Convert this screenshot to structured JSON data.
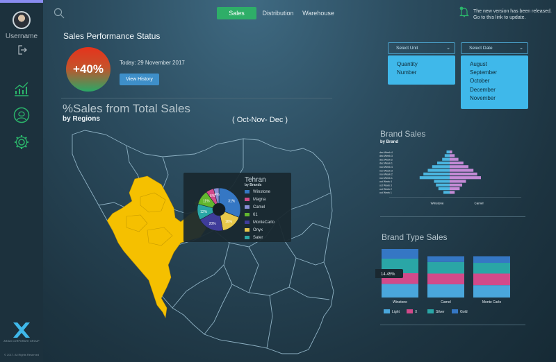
{
  "user": {
    "name": "Username"
  },
  "nav": {
    "tabs": [
      "Sales",
      "Distribution",
      "Warehouse"
    ],
    "active": 0
  },
  "notification": {
    "line1": "The new version has been released.",
    "line2": "Go to this link to update."
  },
  "status": {
    "title": "Sales Performance Status",
    "kpi": "+40%",
    "today": "Today: 29 November 2017",
    "button": "View History"
  },
  "map_section": {
    "title": "%Sales from Total Sales",
    "subtitle": "by Regions",
    "period": "( Oct-Nov- Dec )",
    "tooltip": {
      "title": "Tehran",
      "subtitle": "by Brands",
      "legend": [
        {
          "label": "Winstone",
          "color": "#3577c4"
        },
        {
          "label": "Magna",
          "color": "#d24a8a"
        },
        {
          "label": "Camel",
          "color": "#8a8fd6"
        },
        {
          "label": "61",
          "color": "#62b62e"
        },
        {
          "label": "MonteCarlo",
          "color": "#3f3c9a"
        },
        {
          "label": "Onyx",
          "color": "#e8c84a"
        },
        {
          "label": "Sater",
          "color": "#2aa6a6"
        }
      ],
      "slices": [
        {
          "label": "31%",
          "value": 31,
          "color": "#3577c4"
        },
        {
          "label": "16%",
          "value": 16,
          "color": "#e8c84a"
        },
        {
          "label": "20%",
          "value": 20,
          "color": "#3f3c9a"
        },
        {
          "label": "12%",
          "value": 12,
          "color": "#2aa6a6"
        },
        {
          "label": "11%",
          "value": 11,
          "color": "#62b62e"
        },
        {
          "label": "6%",
          "value": 6,
          "color": "#d24a8a"
        },
        {
          "label": "4%",
          "value": 4,
          "color": "#8a8fd6"
        }
      ]
    }
  },
  "filters": {
    "unit": {
      "label": "Select Unit",
      "options": [
        "Quantity",
        "Number"
      ]
    },
    "date": {
      "label": "Select Date",
      "options": [
        "August",
        "September",
        "October",
        "December",
        "November"
      ]
    }
  },
  "brand_sales": {
    "title": "Brand Sales",
    "subtitle": "by Brand",
    "chart_data": {
      "type": "bar",
      "categories": [
        "dec Week 4",
        "dec Week 3",
        "dec Week 2",
        "dec Week 1",
        "nov Week 4",
        "nov Week 3",
        "nov Week 2",
        "nov Week 1",
        "oct Week 4",
        "oct Week 3",
        "oct Week 2",
        "oct Week 1"
      ],
      "series": [
        {
          "name": "Winstone",
          "values": [
            -5,
            -8,
            -12,
            -20,
            -28,
            -35,
            -42,
            -48,
            -25,
            -22,
            -18,
            -10
          ],
          "color": "#4bb6e0"
        },
        {
          "name": "Camel",
          "values": [
            4,
            8,
            14,
            22,
            30,
            38,
            44,
            50,
            26,
            20,
            16,
            8
          ],
          "color": "#c48ad6"
        }
      ]
    }
  },
  "brand_type": {
    "title": "Brand Type Sales",
    "tooltip": "14.45%",
    "chart_data": {
      "type": "bar",
      "categories": [
        "Winstone",
        "Camel",
        "Monte Carlo"
      ],
      "series": [
        {
          "name": "Light",
          "values": [
            28,
            32,
            30
          ],
          "color": "#4aa7dc"
        },
        {
          "name": "X",
          "values": [
            22,
            26,
            28
          ],
          "color": "#d24a8a"
        },
        {
          "name": "Silver",
          "values": [
            30,
            28,
            26
          ],
          "color": "#2aa6a6"
        },
        {
          "name": "Gold",
          "values": [
            20,
            14,
            16
          ],
          "color": "#3577c4"
        }
      ]
    }
  },
  "footer": {
    "copyright": "© 2017. All Rights Reserved",
    "brand": "ARIAN CORPORATE GROUP"
  }
}
